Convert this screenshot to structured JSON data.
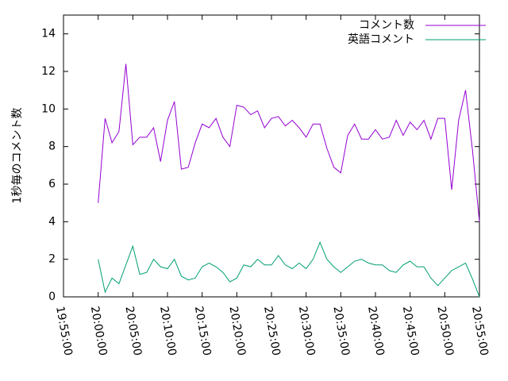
{
  "chart_data": {
    "type": "line",
    "ylabel": "1秒毎のコメント数",
    "x": [
      "20:00:00",
      "20:01:00",
      "20:02:00",
      "20:03:00",
      "20:04:00",
      "20:05:00",
      "20:06:00",
      "20:07:00",
      "20:08:00",
      "20:09:00",
      "20:10:00",
      "20:11:00",
      "20:12:00",
      "20:13:00",
      "20:14:00",
      "20:15:00",
      "20:16:00",
      "20:17:00",
      "20:18:00",
      "20:19:00",
      "20:20:00",
      "20:21:00",
      "20:22:00",
      "20:23:00",
      "20:24:00",
      "20:25:00",
      "20:26:00",
      "20:27:00",
      "20:28:00",
      "20:29:00",
      "20:30:00",
      "20:31:00",
      "20:32:00",
      "20:33:00",
      "20:34:00",
      "20:35:00",
      "20:36:00",
      "20:37:00",
      "20:38:00",
      "20:39:00",
      "20:40:00",
      "20:41:00",
      "20:42:00",
      "20:43:00",
      "20:44:00",
      "20:45:00",
      "20:46:00",
      "20:47:00",
      "20:48:00",
      "20:49:00",
      "20:50:00",
      "20:51:00",
      "20:52:00",
      "20:53:00",
      "20:54:00",
      "20:55:00"
    ],
    "series": [
      {
        "name": "コメント数",
        "color": "#9400d3",
        "values": [
          5.0,
          9.5,
          8.2,
          8.8,
          12.4,
          8.1,
          8.5,
          8.5,
          9.0,
          7.2,
          9.4,
          10.4,
          6.8,
          6.9,
          8.2,
          9.2,
          9.0,
          9.5,
          8.5,
          8.0,
          10.2,
          10.1,
          9.7,
          9.9,
          9.0,
          9.5,
          9.6,
          9.1,
          9.4,
          9.0,
          8.5,
          9.2,
          9.2,
          7.9,
          6.9,
          6.6,
          8.6,
          9.2,
          8.4,
          8.4,
          8.9,
          8.4,
          8.5,
          9.4,
          8.6,
          9.3,
          8.9,
          9.4,
          8.4,
          9.5,
          9.5,
          5.7,
          9.4,
          11.0,
          7.8,
          4.0
        ]
      },
      {
        "name": "英語コメント",
        "color": "#009e73",
        "values": [
          2.0,
          0.25,
          1.0,
          0.7,
          1.7,
          2.7,
          1.2,
          1.3,
          2.0,
          1.6,
          1.5,
          2.0,
          1.1,
          0.9,
          1.0,
          1.6,
          1.8,
          1.6,
          1.3,
          0.8,
          1.0,
          1.7,
          1.6,
          2.0,
          1.7,
          1.7,
          2.2,
          1.7,
          1.5,
          1.8,
          1.5,
          2.0,
          2.9,
          2.0,
          1.6,
          1.3,
          1.6,
          1.9,
          2.0,
          1.8,
          1.7,
          1.7,
          1.4,
          1.3,
          1.7,
          1.9,
          1.6,
          1.6,
          1.0,
          0.6,
          1.0,
          1.4,
          1.6,
          1.8,
          0.95,
          0.0
        ]
      }
    ],
    "xlim": [
      "19:55:00",
      "20:55:00"
    ],
    "xticks": [
      "19:55:00",
      "20:00:00",
      "20:05:00",
      "20:10:00",
      "20:15:00",
      "20:20:00",
      "20:25:00",
      "20:30:00",
      "20:35:00",
      "20:40:00",
      "20:45:00",
      "20:50:00",
      "20:55:00"
    ],
    "ylim": [
      0,
      15
    ],
    "yticks": [
      0,
      2,
      4,
      6,
      8,
      10,
      12,
      14
    ],
    "legend": "top-right"
  }
}
